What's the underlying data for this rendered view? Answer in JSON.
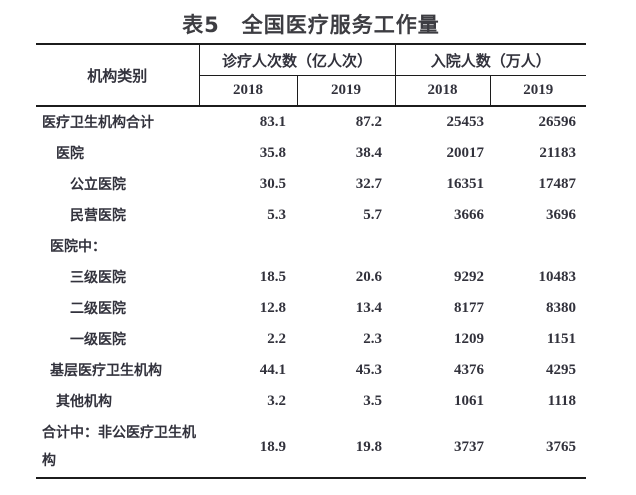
{
  "page": {
    "title": "表5　全国医疗服务工作量"
  },
  "colors": {
    "text": "#32323c",
    "border": "#1c1c1c",
    "background": "#ffffff"
  },
  "table": {
    "stub_header": "机构类别",
    "col_groups": [
      {
        "label": "诊疗人次数（亿人次）",
        "sub": [
          "2018",
          "2019"
        ]
      },
      {
        "label": "入院人数（万人）",
        "sub": [
          "2018",
          "2019"
        ]
      }
    ],
    "rows": [
      {
        "label": "医疗卫生机构合计",
        "values": [
          "83.1",
          "87.2",
          "25453",
          "26596"
        ]
      },
      {
        "label": "医院",
        "values": [
          "35.8",
          "38.4",
          "20017",
          "21183"
        ]
      },
      {
        "label": "公立医院",
        "values": [
          "30.5",
          "32.7",
          "16351",
          "17487"
        ]
      },
      {
        "label": "民营医院",
        "values": [
          "5.3",
          "5.7",
          "3666",
          "3696"
        ]
      },
      {
        "label": "医院中：",
        "values": [
          "",
          "",
          "",
          ""
        ]
      },
      {
        "label": "三级医院",
        "values": [
          "18.5",
          "20.6",
          "9292",
          "10483"
        ]
      },
      {
        "label": "二级医院",
        "values": [
          "12.8",
          "13.4",
          "8177",
          "8380"
        ]
      },
      {
        "label": "一级医院",
        "values": [
          "2.2",
          "2.3",
          "1209",
          "1151"
        ]
      },
      {
        "label": "基层医疗卫生机构",
        "values": [
          "44.1",
          "45.3",
          "4376",
          "4295"
        ]
      },
      {
        "label": "其他机构",
        "values": [
          "3.2",
          "3.5",
          "1061",
          "1118"
        ]
      },
      {
        "label": "合计中：非公医疗卫生机构",
        "values": [
          "18.9",
          "19.8",
          "3737",
          "3765"
        ]
      }
    ]
  }
}
